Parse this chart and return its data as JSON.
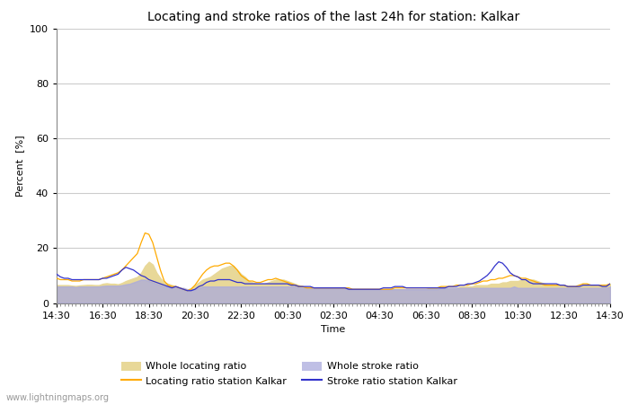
{
  "title": "Locating and stroke ratios of the last 24h for station: Kalkar",
  "xlabel": "Time",
  "ylabel": "Percent  [%]",
  "watermark": "www.lightningmaps.org",
  "ylim": [
    0,
    100
  ],
  "yticks": [
    0,
    20,
    40,
    60,
    80,
    100
  ],
  "x_labels": [
    "14:30",
    "16:30",
    "18:30",
    "20:30",
    "22:30",
    "00:30",
    "02:30",
    "04:30",
    "06:30",
    "08:30",
    "10:30",
    "12:30",
    "14:30"
  ],
  "background_color": "#ffffff",
  "plot_bg_color": "#ffffff",
  "grid_color": "#cccccc",
  "locating_ratio_color": "#ffaa00",
  "stroke_ratio_color": "#3333cc",
  "whole_locating_fill": "#e8d898",
  "whole_stroke_fill": "#aaaadd",
  "title_fontsize": 10,
  "tick_fontsize": 8,
  "label_fontsize": 8,
  "n_points": 145,
  "whole_locating": [
    6.5,
    6.5,
    6.5,
    6.5,
    6.3,
    6.2,
    6.4,
    6.5,
    6.6,
    6.6,
    6.5,
    6.5,
    7.0,
    7.2,
    7.0,
    7.0,
    6.8,
    7.3,
    8.0,
    8.5,
    9.0,
    9.5,
    11.0,
    13.5,
    15.0,
    14.0,
    11.0,
    9.0,
    7.5,
    7.0,
    6.5,
    6.0,
    5.5,
    5.0,
    4.8,
    5.5,
    6.5,
    7.5,
    8.5,
    9.0,
    9.5,
    10.5,
    11.5,
    12.5,
    13.0,
    13.5,
    13.5,
    12.0,
    10.5,
    9.5,
    8.0,
    7.5,
    7.0,
    7.0,
    7.0,
    7.5,
    8.0,
    8.5,
    8.5,
    8.5,
    8.0,
    7.5,
    7.0,
    6.5,
    6.0,
    5.8,
    5.5,
    5.5,
    5.5,
    5.5,
    5.5,
    5.5,
    5.5,
    5.5,
    5.5,
    5.5,
    5.0,
    5.0,
    5.0,
    5.0,
    5.0,
    5.0,
    5.0,
    5.0,
    5.0,
    5.0,
    5.0,
    5.0,
    5.0,
    5.0,
    5.0,
    5.0,
    5.0,
    5.0,
    5.0,
    5.0,
    5.0,
    5.5,
    5.5,
    5.5,
    5.5,
    5.5,
    5.5,
    5.5,
    5.5,
    6.0,
    6.0,
    6.0,
    6.0,
    6.5,
    6.5,
    6.5,
    6.5,
    7.0,
    7.0,
    7.0,
    7.5,
    7.5,
    8.0,
    8.0,
    8.0,
    8.5,
    8.5,
    8.5,
    8.5,
    8.0,
    7.5,
    7.0,
    6.5,
    6.5,
    6.5,
    6.5,
    6.5,
    6.0,
    6.0,
    6.0,
    6.0,
    6.5,
    6.5,
    6.5,
    6.5,
    6.5,
    6.5,
    6.5,
    7.0
  ],
  "locating_station": [
    9.0,
    8.5,
    8.5,
    8.5,
    8.0,
    8.0,
    8.0,
    8.5,
    8.5,
    8.5,
    8.5,
    8.5,
    9.0,
    9.5,
    10.0,
    10.5,
    11.0,
    12.0,
    13.5,
    15.0,
    16.5,
    18.0,
    22.0,
    25.5,
    25.0,
    22.0,
    17.0,
    12.0,
    8.0,
    6.5,
    6.0,
    6.0,
    5.5,
    5.0,
    4.5,
    5.0,
    6.5,
    8.5,
    10.5,
    12.0,
    13.0,
    13.5,
    13.5,
    14.0,
    14.5,
    14.5,
    13.5,
    12.0,
    10.0,
    9.0,
    8.0,
    8.0,
    7.5,
    7.5,
    8.0,
    8.5,
    8.5,
    9.0,
    8.5,
    8.0,
    7.5,
    7.0,
    6.5,
    6.0,
    6.0,
    5.5,
    5.5,
    5.5,
    5.5,
    5.5,
    5.5,
    5.5,
    5.5,
    5.5,
    5.5,
    5.5,
    5.5,
    5.0,
    5.0,
    5.0,
    5.0,
    5.0,
    5.0,
    5.0,
    5.0,
    5.0,
    5.0,
    5.0,
    5.5,
    5.5,
    5.5,
    5.5,
    5.5,
    5.5,
    5.5,
    5.5,
    5.5,
    5.5,
    5.5,
    5.5,
    6.0,
    6.0,
    6.0,
    6.0,
    6.5,
    6.5,
    6.5,
    6.5,
    7.0,
    7.0,
    7.5,
    8.0,
    8.0,
    8.5,
    8.5,
    9.0,
    9.0,
    9.5,
    10.0,
    10.0,
    9.5,
    9.0,
    9.0,
    8.5,
    8.0,
    7.5,
    7.0,
    6.5,
    6.5,
    6.5,
    6.5,
    6.5,
    6.5,
    6.0,
    6.0,
    6.0,
    6.5,
    7.0,
    7.0,
    6.5,
    6.5,
    6.5,
    6.5,
    6.5,
    7.0
  ],
  "whole_stroke": [
    6.0,
    6.0,
    6.0,
    6.0,
    6.0,
    5.8,
    6.0,
    6.0,
    6.0,
    6.0,
    6.0,
    6.0,
    6.2,
    6.3,
    6.3,
    6.3,
    6.3,
    6.5,
    6.8,
    7.0,
    7.5,
    8.0,
    8.5,
    8.5,
    8.0,
    7.5,
    7.0,
    6.5,
    6.0,
    6.0,
    6.0,
    6.0,
    5.5,
    5.5,
    5.0,
    5.0,
    5.0,
    5.5,
    6.0,
    6.0,
    6.0,
    6.0,
    6.0,
    6.0,
    6.0,
    6.0,
    6.0,
    6.0,
    6.0,
    6.0,
    6.0,
    6.0,
    6.0,
    6.0,
    6.0,
    6.0,
    6.0,
    6.0,
    6.0,
    6.0,
    6.0,
    6.0,
    6.0,
    5.5,
    5.5,
    5.5,
    5.5,
    5.5,
    5.5,
    5.5,
    5.5,
    5.5,
    5.5,
    5.5,
    5.5,
    5.5,
    5.0,
    5.0,
    5.0,
    5.0,
    5.0,
    5.0,
    5.0,
    5.0,
    5.0,
    5.0,
    5.0,
    5.0,
    5.0,
    5.0,
    5.0,
    5.0,
    5.0,
    5.0,
    5.0,
    5.0,
    5.0,
    5.0,
    5.0,
    5.0,
    5.5,
    5.5,
    5.5,
    5.5,
    5.5,
    5.5,
    5.5,
    5.5,
    5.5,
    5.5,
    5.5,
    5.5,
    5.5,
    5.5,
    5.5,
    5.5,
    5.5,
    5.5,
    5.5,
    6.0,
    5.5,
    5.5,
    5.5,
    5.5,
    5.5,
    5.5,
    5.5,
    5.5,
    5.5,
    5.5,
    5.5,
    5.5,
    5.5,
    5.5,
    5.5,
    5.5,
    5.5,
    5.5,
    5.5,
    5.5,
    5.5,
    5.5,
    5.5,
    5.5,
    6.0
  ],
  "stroke_station": [
    10.5,
    9.5,
    9.0,
    9.0,
    8.5,
    8.5,
    8.5,
    8.5,
    8.5,
    8.5,
    8.5,
    8.5,
    9.0,
    9.0,
    9.5,
    10.0,
    10.5,
    12.0,
    13.0,
    12.5,
    12.0,
    11.0,
    10.0,
    9.5,
    8.5,
    8.0,
    7.5,
    7.0,
    6.5,
    6.0,
    5.5,
    6.0,
    5.5,
    5.0,
    4.5,
    4.5,
    5.0,
    6.0,
    6.5,
    7.5,
    8.0,
    8.0,
    8.5,
    8.5,
    8.5,
    8.5,
    8.0,
    7.5,
    7.5,
    7.0,
    7.0,
    7.0,
    7.0,
    7.0,
    7.0,
    7.0,
    7.0,
    7.0,
    7.0,
    7.0,
    7.0,
    6.5,
    6.5,
    6.0,
    6.0,
    6.0,
    6.0,
    5.5,
    5.5,
    5.5,
    5.5,
    5.5,
    5.5,
    5.5,
    5.5,
    5.5,
    5.0,
    5.0,
    5.0,
    5.0,
    5.0,
    5.0,
    5.0,
    5.0,
    5.0,
    5.5,
    5.5,
    5.5,
    6.0,
    6.0,
    6.0,
    5.5,
    5.5,
    5.5,
    5.5,
    5.5,
    5.5,
    5.5,
    5.5,
    5.5,
    5.5,
    5.5,
    6.0,
    6.0,
    6.0,
    6.5,
    6.5,
    7.0,
    7.0,
    7.5,
    8.0,
    9.0,
    10.0,
    11.5,
    13.5,
    15.0,
    14.5,
    13.0,
    11.0,
    10.0,
    9.5,
    8.5,
    8.5,
    7.5,
    7.0,
    7.0,
    7.0,
    7.0,
    7.0,
    7.0,
    7.0,
    6.5,
    6.5,
    6.0,
    6.0,
    6.0,
    6.0,
    6.5,
    6.5,
    6.5,
    6.5,
    6.5,
    6.0,
    6.0,
    7.0
  ]
}
